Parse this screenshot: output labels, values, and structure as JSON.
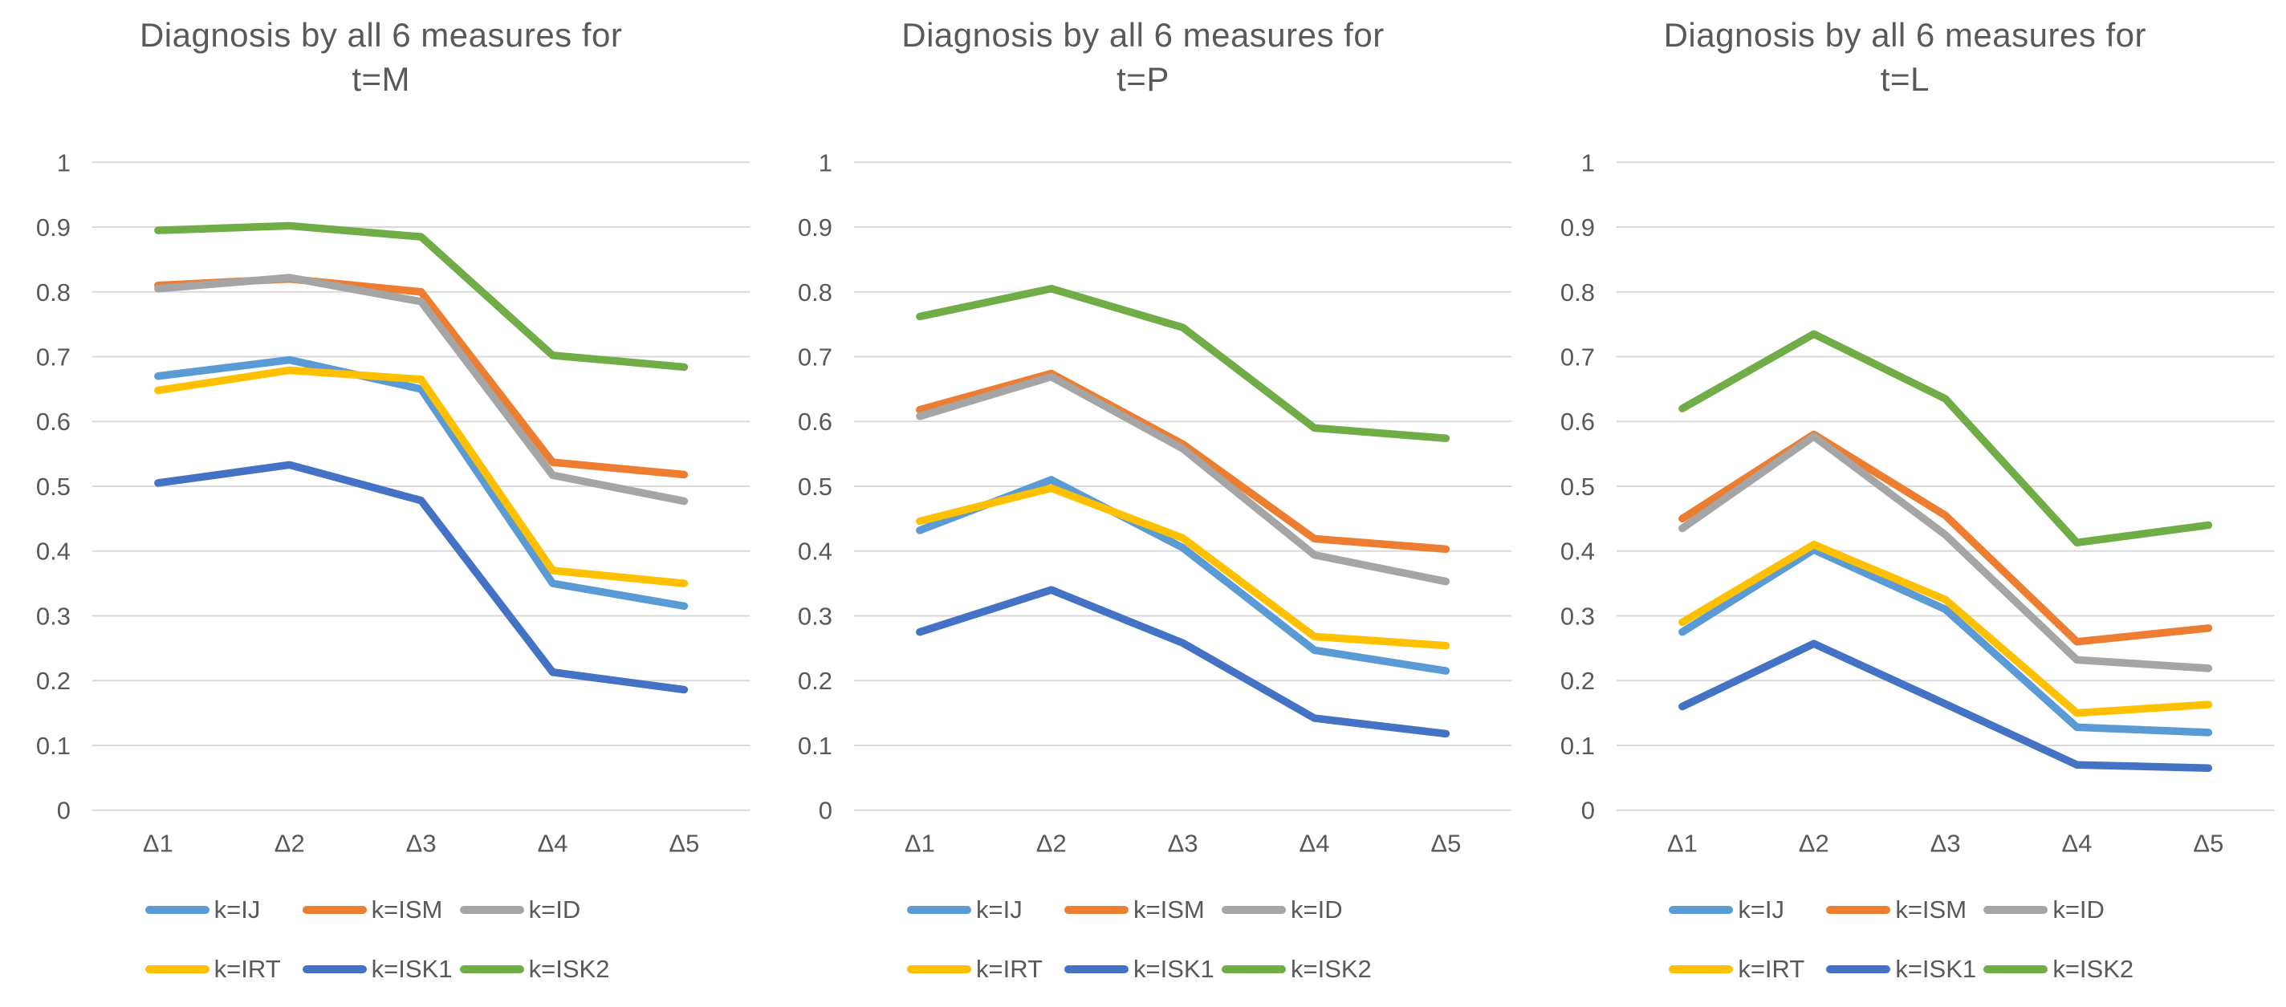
{
  "page": {
    "background": "#ffffff",
    "text_color": "#595959",
    "gridline_color": "#d9d9d9"
  },
  "axis": {
    "y_min": 0,
    "y_max": 1,
    "y_tick_labels": [
      "0",
      "0.1",
      "0.2",
      "0.3",
      "0.4",
      "0.5",
      "0.6",
      "0.7",
      "0.8",
      "0.9",
      "1"
    ],
    "categories": [
      "Δ1",
      "Δ2",
      "Δ3",
      "Δ4",
      "Δ5"
    ]
  },
  "legend": {
    "rows": [
      [
        "k=IJ",
        "k=ISM",
        "k=ID"
      ],
      [
        "k=IRT",
        "k=ISK1",
        "k=ISK2"
      ]
    ]
  },
  "chart_data": [
    {
      "type": "line",
      "title": "Diagnosis by all 6 measures for t=M",
      "title_line1": "Diagnosis by all 6 measures for",
      "title_line2": "t=M",
      "xlabel": "",
      "ylabel": "",
      "ylim": [
        0,
        1
      ],
      "grid": true,
      "legend_position": "bottom",
      "categories": [
        "Δ1",
        "Δ2",
        "Δ3",
        "Δ4",
        "Δ5"
      ],
      "series": [
        {
          "name": "k=IJ",
          "color": "#5B9BD5",
          "values": [
            0.67,
            0.695,
            0.65,
            0.35,
            0.315
          ]
        },
        {
          "name": "k=ISM",
          "color": "#ED7D31",
          "values": [
            0.81,
            0.82,
            0.8,
            0.537,
            0.518
          ]
        },
        {
          "name": "k=ID",
          "color": "#A5A5A5",
          "values": [
            0.805,
            0.822,
            0.785,
            0.517,
            0.477
          ]
        },
        {
          "name": "k=IRT",
          "color": "#FFC000",
          "values": [
            0.648,
            0.679,
            0.665,
            0.37,
            0.35
          ]
        },
        {
          "name": "k=ISK1",
          "color": "#4472C4",
          "values": [
            0.505,
            0.533,
            0.478,
            0.213,
            0.186
          ]
        },
        {
          "name": "k=ISK2",
          "color": "#70AD47",
          "values": [
            0.895,
            0.902,
            0.885,
            0.702,
            0.684
          ]
        }
      ]
    },
    {
      "type": "line",
      "title": "Diagnosis by all 6 measures for t=P",
      "title_line1": "Diagnosis by all 6 measures for",
      "title_line2": "t=P",
      "xlabel": "",
      "ylabel": "",
      "ylim": [
        0,
        1
      ],
      "grid": true,
      "legend_position": "bottom",
      "categories": [
        "Δ1",
        "Δ2",
        "Δ3",
        "Δ4",
        "Δ5"
      ],
      "series": [
        {
          "name": "k=IJ",
          "color": "#5B9BD5",
          "values": [
            0.432,
            0.51,
            0.405,
            0.247,
            0.215
          ]
        },
        {
          "name": "k=ISM",
          "color": "#ED7D31",
          "values": [
            0.618,
            0.674,
            0.565,
            0.419,
            0.403
          ]
        },
        {
          "name": "k=ID",
          "color": "#A5A5A5",
          "values": [
            0.608,
            0.669,
            0.558,
            0.394,
            0.353
          ]
        },
        {
          "name": "k=IRT",
          "color": "#FFC000",
          "values": [
            0.446,
            0.497,
            0.42,
            0.268,
            0.254
          ]
        },
        {
          "name": "k=ISK1",
          "color": "#4472C4",
          "values": [
            0.275,
            0.34,
            0.258,
            0.142,
            0.118
          ]
        },
        {
          "name": "k=ISK2",
          "color": "#70AD47",
          "values": [
            0.762,
            0.805,
            0.745,
            0.59,
            0.574
          ]
        }
      ]
    },
    {
      "type": "line",
      "title": "Diagnosis by all 6 measures for t=L",
      "title_line1": "Diagnosis by all 6 measures for",
      "title_line2": "t=L",
      "xlabel": "",
      "ylabel": "",
      "ylim": [
        0,
        1
      ],
      "grid": true,
      "legend_position": "bottom",
      "categories": [
        "Δ1",
        "Δ2",
        "Δ3",
        "Δ4",
        "Δ5"
      ],
      "series": [
        {
          "name": "k=IJ",
          "color": "#5B9BD5",
          "values": [
            0.275,
            0.402,
            0.31,
            0.128,
            0.12
          ]
        },
        {
          "name": "k=ISM",
          "color": "#ED7D31",
          "values": [
            0.45,
            0.58,
            0.455,
            0.26,
            0.281
          ]
        },
        {
          "name": "k=ID",
          "color": "#A5A5A5",
          "values": [
            0.435,
            0.577,
            0.425,
            0.232,
            0.219
          ]
        },
        {
          "name": "k=IRT",
          "color": "#FFC000",
          "values": [
            0.29,
            0.41,
            0.325,
            0.15,
            0.163
          ]
        },
        {
          "name": "k=ISK1",
          "color": "#4472C4",
          "values": [
            0.16,
            0.257,
            0.164,
            0.07,
            0.065
          ]
        },
        {
          "name": "k=ISK2",
          "color": "#70AD47",
          "values": [
            0.62,
            0.735,
            0.635,
            0.413,
            0.44
          ]
        }
      ]
    }
  ]
}
